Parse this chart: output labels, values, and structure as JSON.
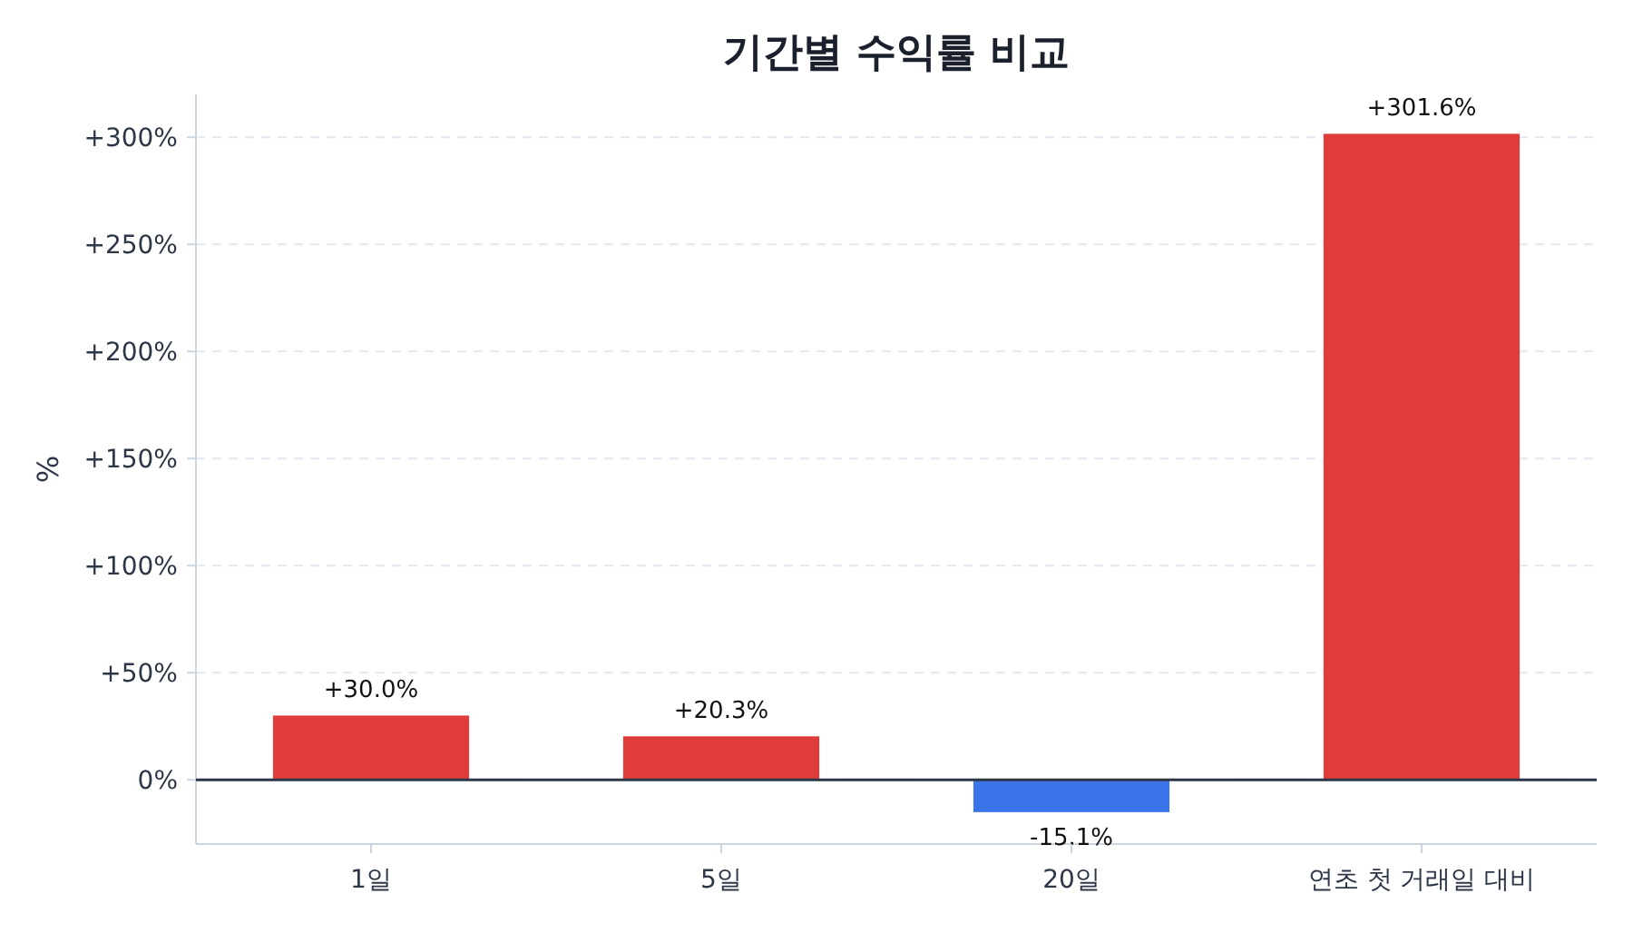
{
  "chart_data": {
    "type": "bar",
    "title": "기간별 수익률 비교",
    "ylabel": "%",
    "categories": [
      "1일",
      "5일",
      "20일",
      "연초 첫 거래일 대비"
    ],
    "values": [
      30.0,
      20.3,
      -15.1,
      301.6
    ],
    "colors": [
      "#e03c3c",
      "#e03c3c",
      "#3b73e8",
      "#e03c3c"
    ],
    "value_labels": [
      "+30.0%",
      "+20.3%",
      "-15.1%",
      "+301.6%"
    ],
    "ylim": [
      -30,
      320
    ],
    "yticks": [
      {
        "value": 0,
        "label": "0%"
      },
      {
        "value": 50,
        "label": "+50%"
      },
      {
        "value": 100,
        "label": "+100%"
      },
      {
        "value": 150,
        "label": "+150%"
      },
      {
        "value": 200,
        "label": "+200%"
      },
      {
        "value": 250,
        "label": "+250%"
      },
      {
        "value": 300,
        "label": "+300%"
      }
    ],
    "grid": "y",
    "ref_lines": [
      {
        "axis": "y",
        "value": 0,
        "color": "#2d3748"
      }
    ]
  }
}
